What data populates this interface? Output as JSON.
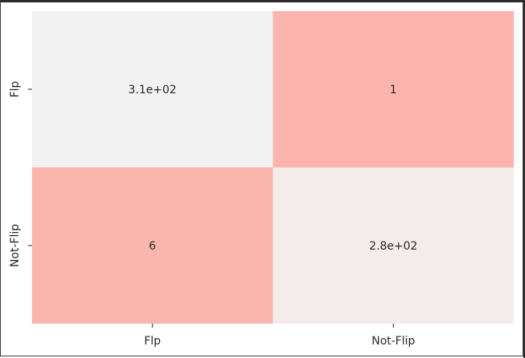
{
  "chart_data": {
    "type": "heatmap",
    "title": "",
    "xlabel": "",
    "ylabel": "",
    "x_categories": [
      "Flp",
      "Not-Flip"
    ],
    "y_categories": [
      "Flp",
      "Not-Flip"
    ],
    "values": [
      [
        310,
        1
      ],
      [
        6,
        280
      ]
    ],
    "annotations": [
      [
        "3.1e+02",
        "1"
      ],
      [
        "6",
        "2.8e+02"
      ]
    ],
    "colors": {
      "high": "#f2f2f2",
      "low": "#fbb4ae",
      "text": "#262626"
    },
    "colorbar": false,
    "grid": false
  }
}
